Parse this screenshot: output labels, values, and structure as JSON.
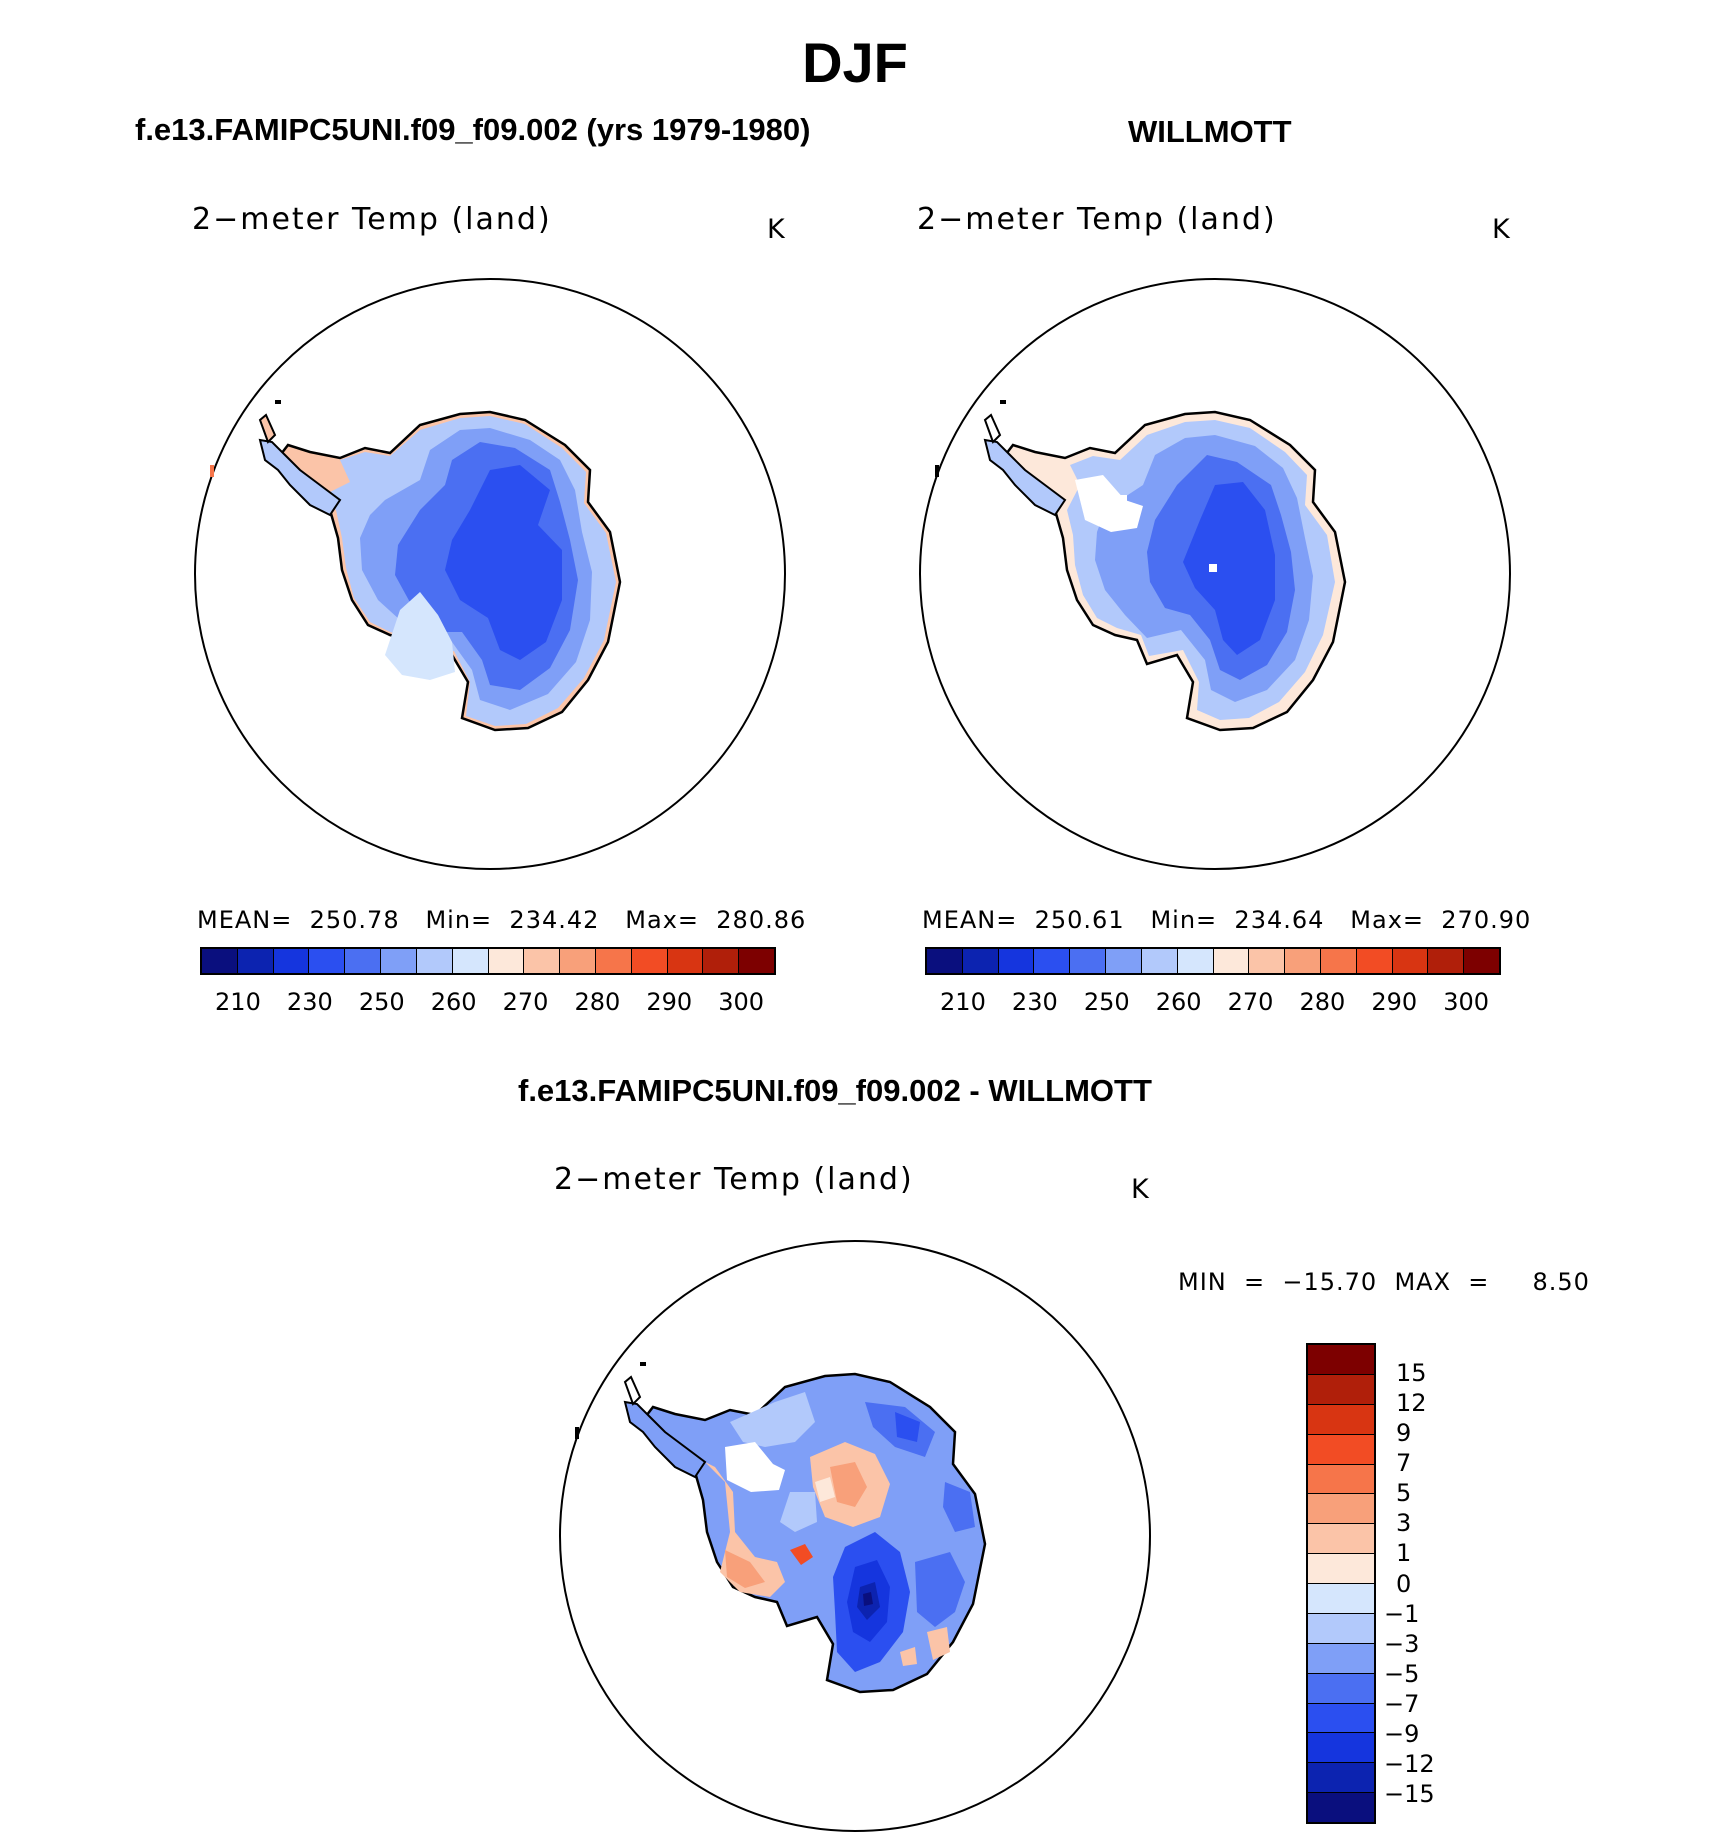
{
  "figure": {
    "season": "DJF",
    "left_title": "f.e13.FAMIPC5UNI.f09_f09.002 (yrs 1979-1980)",
    "right_title": "WILLMOTT",
    "diff_title": "f.e13.FAMIPC5UNI.f09_f09.002 - WILLMOTT"
  },
  "panels": {
    "model": {
      "variable": "2−meter Temp (land)",
      "unit": "K",
      "stats": "MEAN=  250.78   Min=  234.42   Max=  280.86"
    },
    "obs": {
      "variable": "2−meter Temp (land)",
      "unit": "K",
      "stats": "MEAN=  250.61   Min=  234.64   Max=  270.90"
    },
    "diff": {
      "variable": "2−meter Temp (land)",
      "unit": "K",
      "stats": "MIN  =  −15.70  MAX  =     8.50"
    }
  },
  "colorbar_abs": {
    "colors": [
      "#0a0f7e",
      "#0c23b0",
      "#1535de",
      "#2b4ff0",
      "#4b6ff2",
      "#7f9ff7",
      "#b2c9fb",
      "#d5e6fd",
      "#fde8da",
      "#fbc4a8",
      "#f8a07a",
      "#f6754a",
      "#f24c24",
      "#d83512",
      "#b01f0a",
      "#7d0000"
    ],
    "ticks": [
      "210",
      "230",
      "250",
      "260",
      "270",
      "280",
      "290",
      "300"
    ]
  },
  "colorbar_diff": {
    "colors": [
      "#7d0000",
      "#b01f0a",
      "#d83512",
      "#f24c24",
      "#f6754a",
      "#f8a07a",
      "#fbc4a8",
      "#fde8da",
      "#d5e6fd",
      "#b2c9fb",
      "#7f9ff7",
      "#4b6ff2",
      "#2b4ff0",
      "#1535de",
      "#0c23b0",
      "#0a0f7e"
    ],
    "ticks": [
      "15",
      "12",
      "9",
      "7",
      "5",
      "3",
      "1",
      "0",
      "−1",
      "−3",
      "−5",
      "−7",
      "−9",
      "−12",
      "−15"
    ]
  }
}
